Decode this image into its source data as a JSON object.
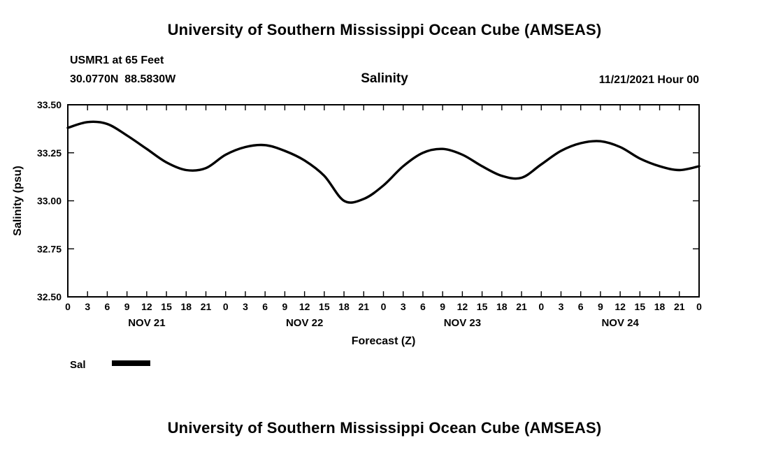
{
  "page": {
    "title_top": "University of Southern Mississippi Ocean Cube (AMSEAS)",
    "title_bottom": "University of Southern Mississippi Ocean Cube (AMSEAS)"
  },
  "header": {
    "station_line1": "USMR1 at 65 Feet",
    "station_line2": "30.0770N  88.5830W",
    "panel_title": "Salinity",
    "datetime": "11/21/2021 Hour 00"
  },
  "chart_data": {
    "type": "line",
    "title": "Salinity",
    "xlabel": "Forecast (Z)",
    "ylabel": "Salinity (psu)",
    "xlim": [
      0,
      96
    ],
    "ylim": [
      32.5,
      33.5
    ],
    "yticks": [
      32.5,
      32.75,
      33.0,
      33.25,
      33.5
    ],
    "ytick_labels": [
      "32.50",
      "32.75",
      "33.00",
      "33.25",
      "33.50"
    ],
    "xtick_interval": 3,
    "xtick_labels": [
      "0",
      "3",
      "6",
      "9",
      "12",
      "15",
      "18",
      "21",
      "0",
      "3",
      "6",
      "9",
      "12",
      "15",
      "18",
      "21",
      "0",
      "3",
      "6",
      "9",
      "12",
      "15",
      "18",
      "21",
      "0",
      "3",
      "6",
      "9",
      "12",
      "15",
      "18",
      "21",
      "0"
    ],
    "day_labels": [
      {
        "label": "NOV 21",
        "center_hour": 12
      },
      {
        "label": "NOV 22",
        "center_hour": 36
      },
      {
        "label": "NOV 23",
        "center_hour": 60
      },
      {
        "label": "NOV 24",
        "center_hour": 84
      }
    ],
    "x_hours": [
      0,
      3,
      6,
      9,
      12,
      15,
      18,
      21,
      24,
      27,
      30,
      33,
      36,
      39,
      42,
      45,
      48,
      51,
      54,
      57,
      60,
      63,
      66,
      69,
      72,
      75,
      78,
      81,
      84,
      87,
      90,
      93,
      96
    ],
    "series": [
      {
        "name": "Sal",
        "color": "#000000",
        "values": [
          33.38,
          33.41,
          33.4,
          33.34,
          33.27,
          33.2,
          33.16,
          33.17,
          33.24,
          33.28,
          33.29,
          33.26,
          33.21,
          33.13,
          33.0,
          33.01,
          33.08,
          33.18,
          33.25,
          33.27,
          33.24,
          33.18,
          33.13,
          33.12,
          33.19,
          33.26,
          33.3,
          33.31,
          33.28,
          33.22,
          33.18,
          33.16,
          33.18
        ]
      }
    ],
    "legend": {
      "label": "Sal",
      "position": "bottom-left"
    },
    "line_width": 3.4,
    "grid": false
  }
}
